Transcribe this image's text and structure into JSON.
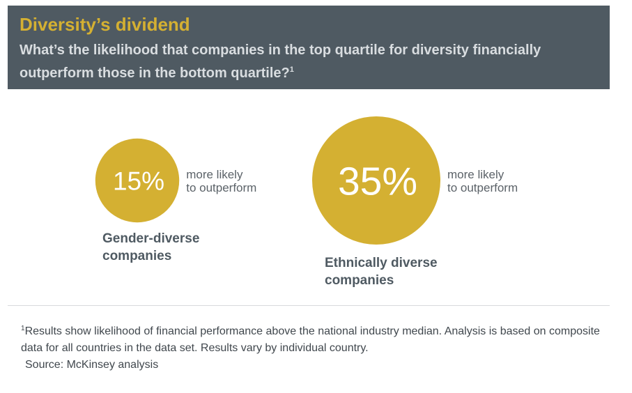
{
  "header": {
    "title": "Diversity’s dividend",
    "subtitle": "What’s the likelihood that companies in the top quartile for diversity financially outperform those in the bottom quartile?",
    "subtitle_footnote_marker": "1"
  },
  "chart_data": {
    "type": "bubble",
    "series": [
      {
        "category": "Gender-diverse companies",
        "category_lines": [
          "Gender-diverse",
          "companies"
        ],
        "value": 15,
        "value_label": "15%",
        "description_lines": [
          "more likely",
          "to outperform"
        ]
      },
      {
        "category": "Ethnically diverse companies",
        "category_lines": [
          "Ethnically diverse",
          "companies"
        ],
        "value": 35,
        "value_label": "35%",
        "description_lines": [
          "more likely",
          "to outperform"
        ]
      }
    ],
    "unit": "%"
  },
  "colors": {
    "header_background": "#4f5a62",
    "title": "#d4b032",
    "bubble_fill": "#d4b032",
    "bubble_text": "#ffffff",
    "label_text": "#4f5a62"
  },
  "footer": {
    "footnote_marker": "1",
    "footnote": "Results show likelihood of financial performance above the national industry median. Analysis is based on composite data for all countries in the data set. Results vary by individual country.",
    "source": "Source: McKinsey analysis"
  }
}
